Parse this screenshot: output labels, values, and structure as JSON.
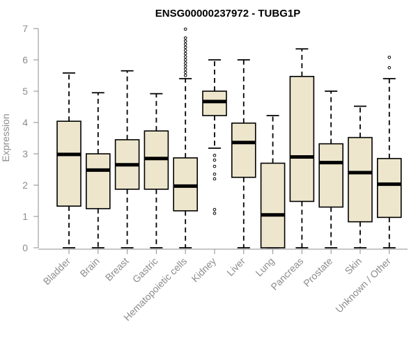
{
  "chart_data": {
    "type": "boxplot",
    "title": "ENSG00000237972 - TUBG1P",
    "xlabel": "",
    "ylabel": "Expression",
    "ylim": [
      0,
      7
    ],
    "yticks": [
      0,
      1,
      2,
      3,
      4,
      5,
      6,
      7
    ],
    "grid": false,
    "box_color": "#ede6cc",
    "categories": [
      "Bladder",
      "Brain",
      "Breast",
      "Gastric",
      "Hematopoietic cells",
      "Kidney",
      "Liver",
      "Lung",
      "Pancreas",
      "Prostate",
      "Skin",
      "Unknown / Other"
    ],
    "boxes": [
      {
        "name": "Bladder",
        "whisker_low": 0,
        "q1": 1.33,
        "median": 2.98,
        "q3": 4.04,
        "whisker_high": 5.58,
        "outliers": []
      },
      {
        "name": "Brain",
        "whisker_low": 0,
        "q1": 1.25,
        "median": 2.48,
        "q3": 3.0,
        "whisker_high": 4.95,
        "outliers": []
      },
      {
        "name": "Breast",
        "whisker_low": 0,
        "q1": 1.87,
        "median": 2.65,
        "q3": 3.45,
        "whisker_high": 5.65,
        "outliers": []
      },
      {
        "name": "Gastric",
        "whisker_low": 0,
        "q1": 1.87,
        "median": 2.85,
        "q3": 3.73,
        "whisker_high": 4.92,
        "outliers": []
      },
      {
        "name": "Hematopoietic cells",
        "whisker_low": 0,
        "q1": 1.18,
        "median": 1.97,
        "q3": 2.87,
        "whisker_high": 5.4,
        "outliers": [
          5.5,
          5.6,
          5.7,
          5.8,
          5.9,
          6.0,
          6.1,
          6.2,
          6.3,
          6.4,
          6.5,
          6.6,
          6.7,
          6.98
        ]
      },
      {
        "name": "Kidney",
        "whisker_low": 3.18,
        "q1": 4.22,
        "median": 4.67,
        "q3": 5.0,
        "whisker_high": 6.0,
        "outliers": [
          2.2,
          2.35,
          2.6,
          2.8,
          2.95,
          1.1,
          1.22
        ]
      },
      {
        "name": "Liver",
        "whisker_low": 0,
        "q1": 2.25,
        "median": 3.36,
        "q3": 3.98,
        "whisker_high": 6.0,
        "outliers": []
      },
      {
        "name": "Lung",
        "whisker_low": 0,
        "q1": 0,
        "median": 1.05,
        "q3": 2.7,
        "whisker_high": 4.22,
        "outliers": []
      },
      {
        "name": "Pancreas",
        "whisker_low": 0,
        "q1": 1.48,
        "median": 2.9,
        "q3": 5.47,
        "whisker_high": 6.35,
        "outliers": []
      },
      {
        "name": "Prostate",
        "whisker_low": 0,
        "q1": 1.3,
        "median": 2.72,
        "q3": 3.32,
        "whisker_high": 5.0,
        "outliers": []
      },
      {
        "name": "Skin",
        "whisker_low": 0,
        "q1": 0.83,
        "median": 2.4,
        "q3": 3.52,
        "whisker_high": 4.52,
        "outliers": []
      },
      {
        "name": "Unknown / Other",
        "whisker_low": 0,
        "q1": 0.97,
        "median": 2.03,
        "q3": 2.85,
        "whisker_high": 5.4,
        "outliers": [
          5.75,
          6.08
        ]
      }
    ]
  }
}
